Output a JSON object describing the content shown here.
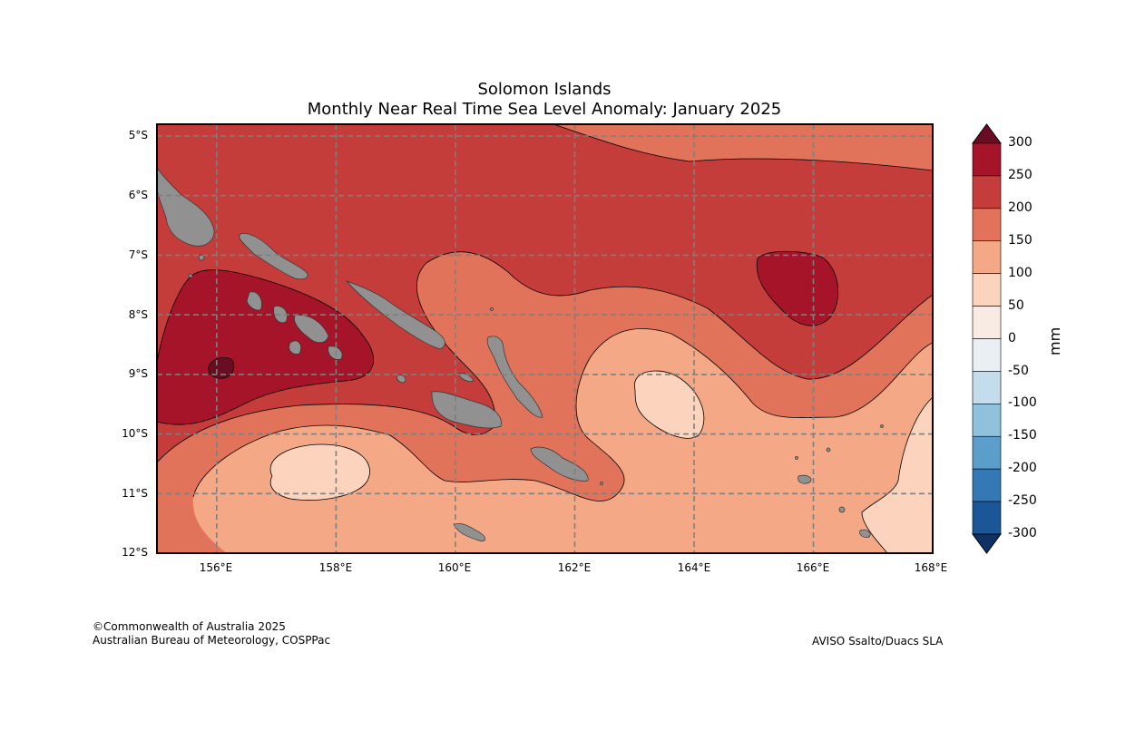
{
  "header": {
    "title": "Solomon Islands",
    "subtitle": "Monthly Near Real Time Sea Level Anomaly: January 2025"
  },
  "map": {
    "lon_range": [
      155,
      168
    ],
    "lat_range": [
      -12,
      -4.8
    ],
    "lat_labels": [
      "5°S",
      "6°S",
      "7°S",
      "8°S",
      "9°S",
      "10°S",
      "11°S",
      "12°S"
    ],
    "lon_labels": [
      "156°E",
      "158°E",
      "160°E",
      "162°E",
      "164°E",
      "166°E",
      "168°E"
    ],
    "gridlines": "dashed",
    "land_color": "#919191"
  },
  "colorbar": {
    "unit": "mm",
    "ticks": [
      "300",
      "250",
      "200",
      "150",
      "100",
      "50",
      "0",
      "-50",
      "-100",
      "-150",
      "-200",
      "-250",
      "-300"
    ],
    "colors": [
      "#6a0c22",
      "#a51428",
      "#c53d3b",
      "#e0735a",
      "#f4a886",
      "#fcd3bc",
      "#f8ebe4",
      "#e9eff3",
      "#c3ddec",
      "#90c1dd",
      "#5a9ec9",
      "#3479b5",
      "#1b5797",
      "#0d3263"
    ]
  },
  "footer": {
    "copyright": "©Commonwealth of Australia 2025",
    "agency": "Australian Bureau of Meteorology, COSPPac",
    "source": "AVISO Ssalto/Duacs SLA"
  }
}
